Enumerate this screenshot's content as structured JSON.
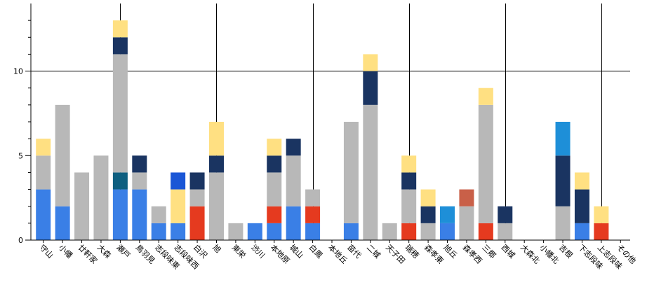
{
  "chart_data": {
    "type": "bar",
    "stacked": true,
    "grid": false,
    "legend": "none",
    "ylim": [
      0,
      14
    ],
    "y_ticks": [
      0,
      5,
      10
    ],
    "y_tick_labels": [
      "0",
      "5",
      "10"
    ],
    "minor_ticks": [
      1,
      2,
      3,
      4,
      6,
      7,
      8,
      9,
      11,
      12,
      13
    ],
    "reference_lines": {
      "horizontal_y": 10,
      "vertical_at_categories": [
        "瀬戸",
        "旭",
        "白鳳",
        "瑞穂",
        "西城",
        "上志段味"
      ]
    },
    "categories": [
      "守山",
      "小幡",
      "廿軒家",
      "大森",
      "瀬戸",
      "鳥羽見",
      "志段味東",
      "志段味西",
      "白沢",
      "旭",
      "東栄",
      "渋川",
      "本地原",
      "城山",
      "白鳳",
      "本地丘",
      "苗代",
      "二城",
      "天子田",
      "瑞穂",
      "森孝東",
      "旭丘",
      "森孝西",
      "三郷",
      "西城",
      "大森北",
      "小幡北",
      "吉根",
      "下志段味",
      "上志段味",
      "その他"
    ],
    "series_colors": {
      "blue": "#3a7fe6",
      "red": "#e53a1f",
      "gray": "#b8b8b8",
      "navy": "#1a3461",
      "yellow": "#ffe082",
      "teal": "#0e5f80",
      "light_blue": "#1e8fd8",
      "royal_blue": "#1a56d6",
      "brick": "#c96048"
    },
    "stacks": [
      [
        {
          "c": "blue",
          "v": 3
        },
        {
          "c": "gray",
          "v": 2
        },
        {
          "c": "yellow",
          "v": 1
        }
      ],
      [
        {
          "c": "blue",
          "v": 2
        },
        {
          "c": "gray",
          "v": 6
        }
      ],
      [
        {
          "c": "gray",
          "v": 4
        }
      ],
      [
        {
          "c": "gray",
          "v": 5
        }
      ],
      [
        {
          "c": "blue",
          "v": 3
        },
        {
          "c": "teal",
          "v": 1
        },
        {
          "c": "gray",
          "v": 7
        },
        {
          "c": "navy",
          "v": 1
        },
        {
          "c": "yellow",
          "v": 1
        }
      ],
      [
        {
          "c": "blue",
          "v": 3
        },
        {
          "c": "gray",
          "v": 1
        },
        {
          "c": "navy",
          "v": 1
        }
      ],
      [
        {
          "c": "blue",
          "v": 1
        },
        {
          "c": "gray",
          "v": 1
        }
      ],
      [
        {
          "c": "blue",
          "v": 1
        },
        {
          "c": "yellow",
          "v": 2
        },
        {
          "c": "royal_blue",
          "v": 1
        }
      ],
      [
        {
          "c": "red",
          "v": 2
        },
        {
          "c": "gray",
          "v": 1
        },
        {
          "c": "navy",
          "v": 1
        }
      ],
      [
        {
          "c": "gray",
          "v": 4
        },
        {
          "c": "navy",
          "v": 1
        },
        {
          "c": "yellow",
          "v": 2
        }
      ],
      [
        {
          "c": "gray",
          "v": 1
        }
      ],
      [
        {
          "c": "blue",
          "v": 1
        }
      ],
      [
        {
          "c": "blue",
          "v": 1
        },
        {
          "c": "red",
          "v": 1
        },
        {
          "c": "gray",
          "v": 2
        },
        {
          "c": "navy",
          "v": 1
        },
        {
          "c": "yellow",
          "v": 1
        }
      ],
      [
        {
          "c": "blue",
          "v": 2
        },
        {
          "c": "gray",
          "v": 3
        },
        {
          "c": "navy",
          "v": 1
        }
      ],
      [
        {
          "c": "blue",
          "v": 1
        },
        {
          "c": "red",
          "v": 1
        },
        {
          "c": "gray",
          "v": 1
        }
      ],
      [],
      [
        {
          "c": "blue",
          "v": 1
        },
        {
          "c": "gray",
          "v": 6
        }
      ],
      [
        {
          "c": "gray",
          "v": 8
        },
        {
          "c": "navy",
          "v": 2
        },
        {
          "c": "yellow",
          "v": 1
        }
      ],
      [
        {
          "c": "gray",
          "v": 1
        }
      ],
      [
        {
          "c": "red",
          "v": 1
        },
        {
          "c": "gray",
          "v": 2
        },
        {
          "c": "navy",
          "v": 1
        },
        {
          "c": "yellow",
          "v": 1
        }
      ],
      [
        {
          "c": "gray",
          "v": 1
        },
        {
          "c": "navy",
          "v": 1
        },
        {
          "c": "yellow",
          "v": 1
        }
      ],
      [
        {
          "c": "blue",
          "v": 1
        },
        {
          "c": "light_blue",
          "v": 1
        }
      ],
      [
        {
          "c": "gray",
          "v": 2
        },
        {
          "c": "brick",
          "v": 1
        }
      ],
      [
        {
          "c": "red",
          "v": 1
        },
        {
          "c": "gray",
          "v": 7
        },
        {
          "c": "yellow",
          "v": 1
        }
      ],
      [
        {
          "c": "gray",
          "v": 1
        },
        {
          "c": "navy",
          "v": 1
        }
      ],
      [],
      [],
      [
        {
          "c": "gray",
          "v": 2
        },
        {
          "c": "navy",
          "v": 3
        },
        {
          "c": "light_blue",
          "v": 2
        }
      ],
      [
        {
          "c": "blue",
          "v": 1
        },
        {
          "c": "navy",
          "v": 2
        },
        {
          "c": "yellow",
          "v": 1
        }
      ],
      [
        {
          "c": "red",
          "v": 1
        },
        {
          "c": "yellow",
          "v": 1
        }
      ],
      []
    ]
  }
}
